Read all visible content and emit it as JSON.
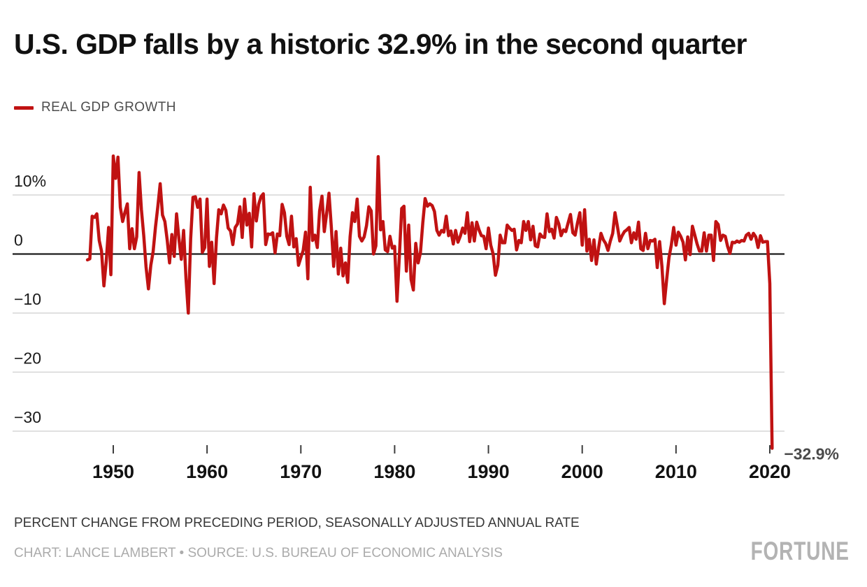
{
  "header": {
    "title": "U.S. GDP falls by a historic 32.9% in the second quarter"
  },
  "legend": {
    "label": "REAL GDP GROWTH"
  },
  "colors": {
    "line_red": "#c01212",
    "gridline": "#d6d6d6",
    "zero_line": "#1c1c1c",
    "axis_text": "#1a1a1a",
    "x_label": "#111111",
    "tick": "#3d3d3d",
    "annotation": "#4a4a4a"
  },
  "footer": {
    "note": "PERCENT CHANGE FROM PRECEDING PERIOD, SEASONALLY ADJUSTED ANNUAL RATE",
    "credit": "CHART: LANCE LAMBERT • SOURCE: U.S. BUREAU OF ECONOMIC ANALYSIS",
    "logo": "FORTUNE"
  },
  "chart_data": {
    "type": "line",
    "title": "U.S. GDP falls by a historic 32.9% in the second quarter",
    "series_name": "REAL GDP GROWTH",
    "ylabel": "Percent change from preceding period, seasonally adjusted annual rate",
    "frequency": "quarterly",
    "x_start": 1947.25,
    "x_step": 0.25,
    "x_end": 2020.25,
    "xlim": [
      1946.9,
      2021.6
    ],
    "ylim": [
      -35,
      18
    ],
    "grid": true,
    "legend_position": "top-left",
    "x_ticks": [
      1950,
      1960,
      1970,
      1980,
      1990,
      2000,
      2010,
      2020
    ],
    "y_ticks": [
      {
        "label": "10%",
        "value": 10
      },
      {
        "label": "0",
        "value": 0
      },
      {
        "label": "−10",
        "value": -10
      },
      {
        "label": "−20",
        "value": -20
      },
      {
        "label": "−30",
        "value": -30
      }
    ],
    "annotation": {
      "label": "−32.9%",
      "x": 2020.25,
      "y": -32.9
    },
    "values": [
      -1.0,
      -0.8,
      6.4,
      6.2,
      6.8,
      2.3,
      0.5,
      -5.4,
      -1.3,
      4.5,
      -3.5,
      16.6,
      12.8,
      16.4,
      7.9,
      5.5,
      7.1,
      8.5,
      0.9,
      4.3,
      0.9,
      2.9,
      13.8,
      7.6,
      3.1,
      -2.2,
      -5.9,
      -1.9,
      0.4,
      4.6,
      8.0,
      11.9,
      6.6,
      5.5,
      2.4,
      -1.5,
      3.3,
      -0.4,
      6.8,
      2.6,
      -0.9,
      4.0,
      -4.1,
      -10.0,
      2.6,
      9.6,
      9.7,
      7.9,
      9.3,
      0.3,
      1.1,
      9.3,
      -2.1,
      2.0,
      -5.0,
      2.7,
      7.5,
      6.8,
      8.3,
      7.4,
      4.4,
      3.9,
      1.6,
      4.5,
      5.1,
      8.0,
      2.8,
      9.3,
      4.9,
      6.9,
      1.2,
      10.2,
      5.6,
      8.4,
      9.7,
      10.2,
      1.6,
      3.4,
      3.3,
      3.6,
      0.2,
      3.4,
      3.1,
      8.4,
      7.0,
      3.0,
      1.6,
      6.4,
      1.2,
      2.6,
      -1.9,
      -0.6,
      0.6,
      3.7,
      -4.2,
      11.3,
      2.3,
      3.2,
      1.1,
      7.3,
      9.8,
      3.8,
      6.9,
      10.3,
      4.5,
      -2.1,
      3.8,
      -3.4,
      1.0,
      -3.7,
      -1.5,
      -4.8,
      2.9,
      7.0,
      5.5,
      9.3,
      3.0,
      2.2,
      2.9,
      4.8,
      8.0,
      7.3,
      0.0,
      1.4,
      16.5,
      4.1,
      5.5,
      0.7,
      0.4,
      3.0,
      1.0,
      1.3,
      -8.0,
      -0.5,
      7.7,
      8.1,
      -2.9,
      4.9,
      -4.3,
      -6.1,
      1.8,
      -1.5,
      0.2,
      5.3,
      9.4,
      8.1,
      8.5,
      8.2,
      7.2,
      4.0,
      3.2,
      4.0,
      3.7,
      6.4,
      3.1,
      3.9,
      1.7,
      4.0,
      2.0,
      3.0,
      4.4,
      3.5,
      7.0,
      2.1,
      5.3,
      2.2,
      5.4,
      4.1,
      3.1,
      3.0,
      0.9,
      4.4,
      1.5,
      0.0,
      -3.6,
      -1.9,
      3.2,
      1.9,
      1.9,
      4.9,
      4.4,
      4.0,
      4.2,
      0.7,
      2.3,
      1.9,
      5.5,
      4.0,
      5.5,
      2.4,
      4.7,
      1.4,
      1.2,
      3.4,
      2.9,
      2.8,
      6.8,
      3.8,
      4.2,
      2.7,
      6.2,
      5.1,
      3.1,
      4.1,
      3.8,
      5.3,
      6.7,
      3.6,
      3.2,
      5.3,
      7.0,
      1.5,
      7.5,
      0.5,
      2.5,
      -1.1,
      2.4,
      -1.7,
      1.1,
      3.5,
      2.4,
      1.8,
      0.6,
      2.2,
      3.5,
      7.0,
      4.7,
      2.2,
      3.1,
      3.8,
      4.1,
      4.5,
      1.9,
      3.6,
      2.5,
      5.4,
      0.9,
      0.6,
      3.5,
      0.9,
      2.3,
      2.2,
      2.5,
      -2.3,
      2.1,
      -2.1,
      -8.4,
      -4.4,
      -0.6,
      1.5,
      4.5,
      1.5,
      3.7,
      3.0,
      2.0,
      -1.0,
      2.9,
      -0.1,
      4.7,
      3.2,
      1.7,
      0.5,
      0.5,
      3.6,
      0.5,
      3.2,
      3.2,
      -1.1,
      5.5,
      5.0,
      2.3,
      3.2,
      3.0,
      1.3,
      0.1,
      2.0,
      1.9,
      2.2,
      2.0,
      2.3,
      2.2,
      3.2,
      3.5,
      2.5,
      3.5,
      2.9,
      1.1,
      3.1,
      2.0,
      2.1,
      2.1,
      -5.0,
      -32.9
    ]
  }
}
